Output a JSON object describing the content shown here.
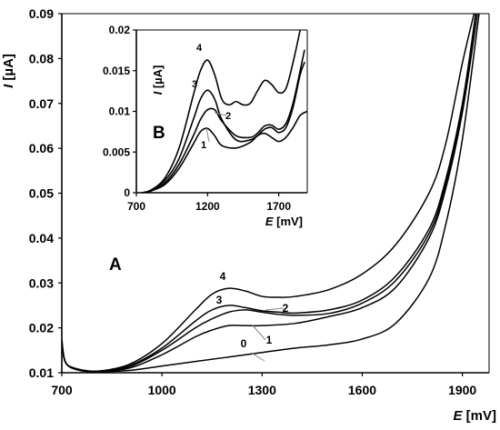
{
  "chart_data": [
    {
      "type": "line",
      "panel_label": "A",
      "xlabel_var": "E",
      "xlabel_unit": " [mV]",
      "ylabel_var": "I",
      "ylabel_unit": " [µA]",
      "xlim": [
        700,
        1980
      ],
      "ylim": [
        0.01,
        0.09
      ],
      "x_ticks": [
        700,
        1000,
        1300,
        1600,
        1900
      ],
      "y_ticks": [
        0.01,
        0.02,
        0.03,
        0.04,
        0.05,
        0.06,
        0.07,
        0.08,
        0.09
      ],
      "grid": false,
      "series": [
        {
          "name": "0",
          "points": [
            [
              700,
              0.0175
            ],
            [
              710,
              0.0125
            ],
            [
              740,
              0.011
            ],
            [
              800,
              0.0103
            ],
            [
              900,
              0.0105
            ],
            [
              1000,
              0.0115
            ],
            [
              1100,
              0.0125
            ],
            [
              1200,
              0.0135
            ],
            [
              1300,
              0.0145
            ],
            [
              1400,
              0.0155
            ],
            [
              1500,
              0.0162
            ],
            [
              1600,
              0.0175
            ],
            [
              1700,
              0.021
            ],
            [
              1800,
              0.031
            ],
            [
              1850,
              0.043
            ],
            [
              1900,
              0.062
            ],
            [
              1950,
              0.09
            ]
          ]
        },
        {
          "name": "1",
          "points": [
            [
              700,
              0.017
            ],
            [
              710,
              0.0125
            ],
            [
              740,
              0.0108
            ],
            [
              800,
              0.0103
            ],
            [
              900,
              0.011
            ],
            [
              1000,
              0.014
            ],
            [
              1100,
              0.018
            ],
            [
              1150,
              0.0195
            ],
            [
              1200,
              0.0205
            ],
            [
              1250,
              0.0205
            ],
            [
              1300,
              0.0205
            ],
            [
              1400,
              0.021
            ],
            [
              1500,
              0.0225
            ],
            [
              1600,
              0.0245
            ],
            [
              1700,
              0.029
            ],
            [
              1800,
              0.04
            ],
            [
              1850,
              0.051
            ],
            [
              1900,
              0.068
            ],
            [
              1945,
              0.09
            ]
          ]
        },
        {
          "name": "2",
          "points": [
            [
              700,
              0.017
            ],
            [
              710,
              0.0125
            ],
            [
              740,
              0.0108
            ],
            [
              800,
              0.0103
            ],
            [
              900,
              0.0113
            ],
            [
              1000,
              0.015
            ],
            [
              1100,
              0.02
            ],
            [
              1150,
              0.022
            ],
            [
              1200,
              0.0235
            ],
            [
              1250,
              0.024
            ],
            [
              1300,
              0.0235
            ],
            [
              1350,
              0.023
            ],
            [
              1400,
              0.0228
            ],
            [
              1500,
              0.0232
            ],
            [
              1600,
              0.0255
            ],
            [
              1700,
              0.0305
            ],
            [
              1800,
              0.041
            ],
            [
              1850,
              0.052
            ],
            [
              1900,
              0.069
            ],
            [
              1940,
              0.09
            ]
          ]
        },
        {
          "name": "3",
          "points": [
            [
              700,
              0.017
            ],
            [
              710,
              0.0125
            ],
            [
              740,
              0.0108
            ],
            [
              800,
              0.0103
            ],
            [
              900,
              0.0115
            ],
            [
              1000,
              0.0155
            ],
            [
              1100,
              0.0215
            ],
            [
              1150,
              0.024
            ],
            [
              1200,
              0.025
            ],
            [
              1250,
              0.0245
            ],
            [
              1300,
              0.0238
            ],
            [
              1350,
              0.0235
            ],
            [
              1400,
              0.0233
            ],
            [
              1500,
              0.024
            ],
            [
              1600,
              0.0262
            ],
            [
              1700,
              0.0315
            ],
            [
              1800,
              0.042
            ],
            [
              1850,
              0.053
            ],
            [
              1900,
              0.07
            ],
            [
              1940,
              0.09
            ]
          ]
        },
        {
          "name": "4",
          "points": [
            [
              700,
              0.017
            ],
            [
              710,
              0.0125
            ],
            [
              740,
              0.0108
            ],
            [
              800,
              0.0103
            ],
            [
              900,
              0.0118
            ],
            [
              1000,
              0.0165
            ],
            [
              1100,
              0.024
            ],
            [
              1150,
              0.0275
            ],
            [
              1200,
              0.0288
            ],
            [
              1250,
              0.0282
            ],
            [
              1300,
              0.027
            ],
            [
              1350,
              0.0268
            ],
            [
              1400,
              0.027
            ],
            [
              1500,
              0.0285
            ],
            [
              1600,
              0.032
            ],
            [
              1700,
              0.0385
            ],
            [
              1800,
              0.05
            ],
            [
              1850,
              0.061
            ],
            [
              1900,
              0.079
            ],
            [
              1935,
              0.09
            ]
          ]
        }
      ]
    },
    {
      "type": "line",
      "panel_label": "B",
      "xlabel_var": "E",
      "xlabel_unit": " [mV]",
      "ylabel_var": "I",
      "ylabel_unit": " [µA]",
      "xlim": [
        700,
        1900
      ],
      "ylim": [
        0,
        0.02
      ],
      "x_ticks": [
        700,
        1200,
        1700
      ],
      "y_ticks": [
        0,
        0.005,
        0.01,
        0.015,
        0.02
      ],
      "grid": false,
      "series": [
        {
          "name": "1",
          "points": [
            [
              740,
              0
            ],
            [
              800,
              0.0002
            ],
            [
              900,
              0.001
            ],
            [
              1000,
              0.003
            ],
            [
              1100,
              0.006
            ],
            [
              1150,
              0.0075
            ],
            [
              1200,
              0.0079
            ],
            [
              1250,
              0.007
            ],
            [
              1300,
              0.0058
            ],
            [
              1400,
              0.0055
            ],
            [
              1500,
              0.0062
            ],
            [
              1550,
              0.007
            ],
            [
              1600,
              0.0073
            ],
            [
              1650,
              0.0068
            ],
            [
              1700,
              0.0063
            ],
            [
              1750,
              0.0068
            ],
            [
              1800,
              0.008
            ],
            [
              1850,
              0.0095
            ],
            [
              1900,
              0.01
            ]
          ]
        },
        {
          "name": "2",
          "points": [
            [
              740,
              0
            ],
            [
              800,
              0.0002
            ],
            [
              900,
              0.0012
            ],
            [
              1000,
              0.0035
            ],
            [
              1100,
              0.007
            ],
            [
              1150,
              0.009
            ],
            [
              1200,
              0.0102
            ],
            [
              1250,
              0.0102
            ],
            [
              1300,
              0.0088
            ],
            [
              1400,
              0.007
            ],
            [
              1500,
              0.0068
            ],
            [
              1550,
              0.0073
            ],
            [
              1600,
              0.0082
            ],
            [
              1650,
              0.0083
            ],
            [
              1700,
              0.0078
            ],
            [
              1750,
              0.0085
            ],
            [
              1800,
              0.011
            ],
            [
              1850,
              0.015
            ],
            [
              1880,
              0.0175
            ]
          ]
        },
        {
          "name": "3",
          "points": [
            [
              740,
              0
            ],
            [
              800,
              0.0003
            ],
            [
              900,
              0.0015
            ],
            [
              1000,
              0.0042
            ],
            [
              1100,
              0.009
            ],
            [
              1150,
              0.0115
            ],
            [
              1200,
              0.0126
            ],
            [
              1250,
              0.0115
            ],
            [
              1300,
              0.009
            ],
            [
              1400,
              0.0065
            ],
            [
              1500,
              0.0065
            ],
            [
              1550,
              0.007
            ],
            [
              1600,
              0.0078
            ],
            [
              1650,
              0.008
            ],
            [
              1700,
              0.0074
            ],
            [
              1750,
              0.008
            ],
            [
              1800,
              0.0105
            ],
            [
              1850,
              0.0145
            ],
            [
              1880,
              0.016
            ]
          ]
        },
        {
          "name": "4",
          "points": [
            [
              740,
              0
            ],
            [
              800,
              0.0003
            ],
            [
              900,
              0.0018
            ],
            [
              1000,
              0.0055
            ],
            [
              1100,
              0.012
            ],
            [
              1150,
              0.015
            ],
            [
              1200,
              0.0163
            ],
            [
              1250,
              0.0145
            ],
            [
              1300,
              0.0115
            ],
            [
              1350,
              0.0108
            ],
            [
              1400,
              0.0112
            ],
            [
              1450,
              0.0108
            ],
            [
              1500,
              0.011
            ],
            [
              1550,
              0.0125
            ],
            [
              1600,
              0.0138
            ],
            [
              1650,
              0.0133
            ],
            [
              1700,
              0.0123
            ],
            [
              1750,
              0.0128
            ],
            [
              1800,
              0.016
            ],
            [
              1850,
              0.02
            ]
          ]
        }
      ]
    }
  ]
}
